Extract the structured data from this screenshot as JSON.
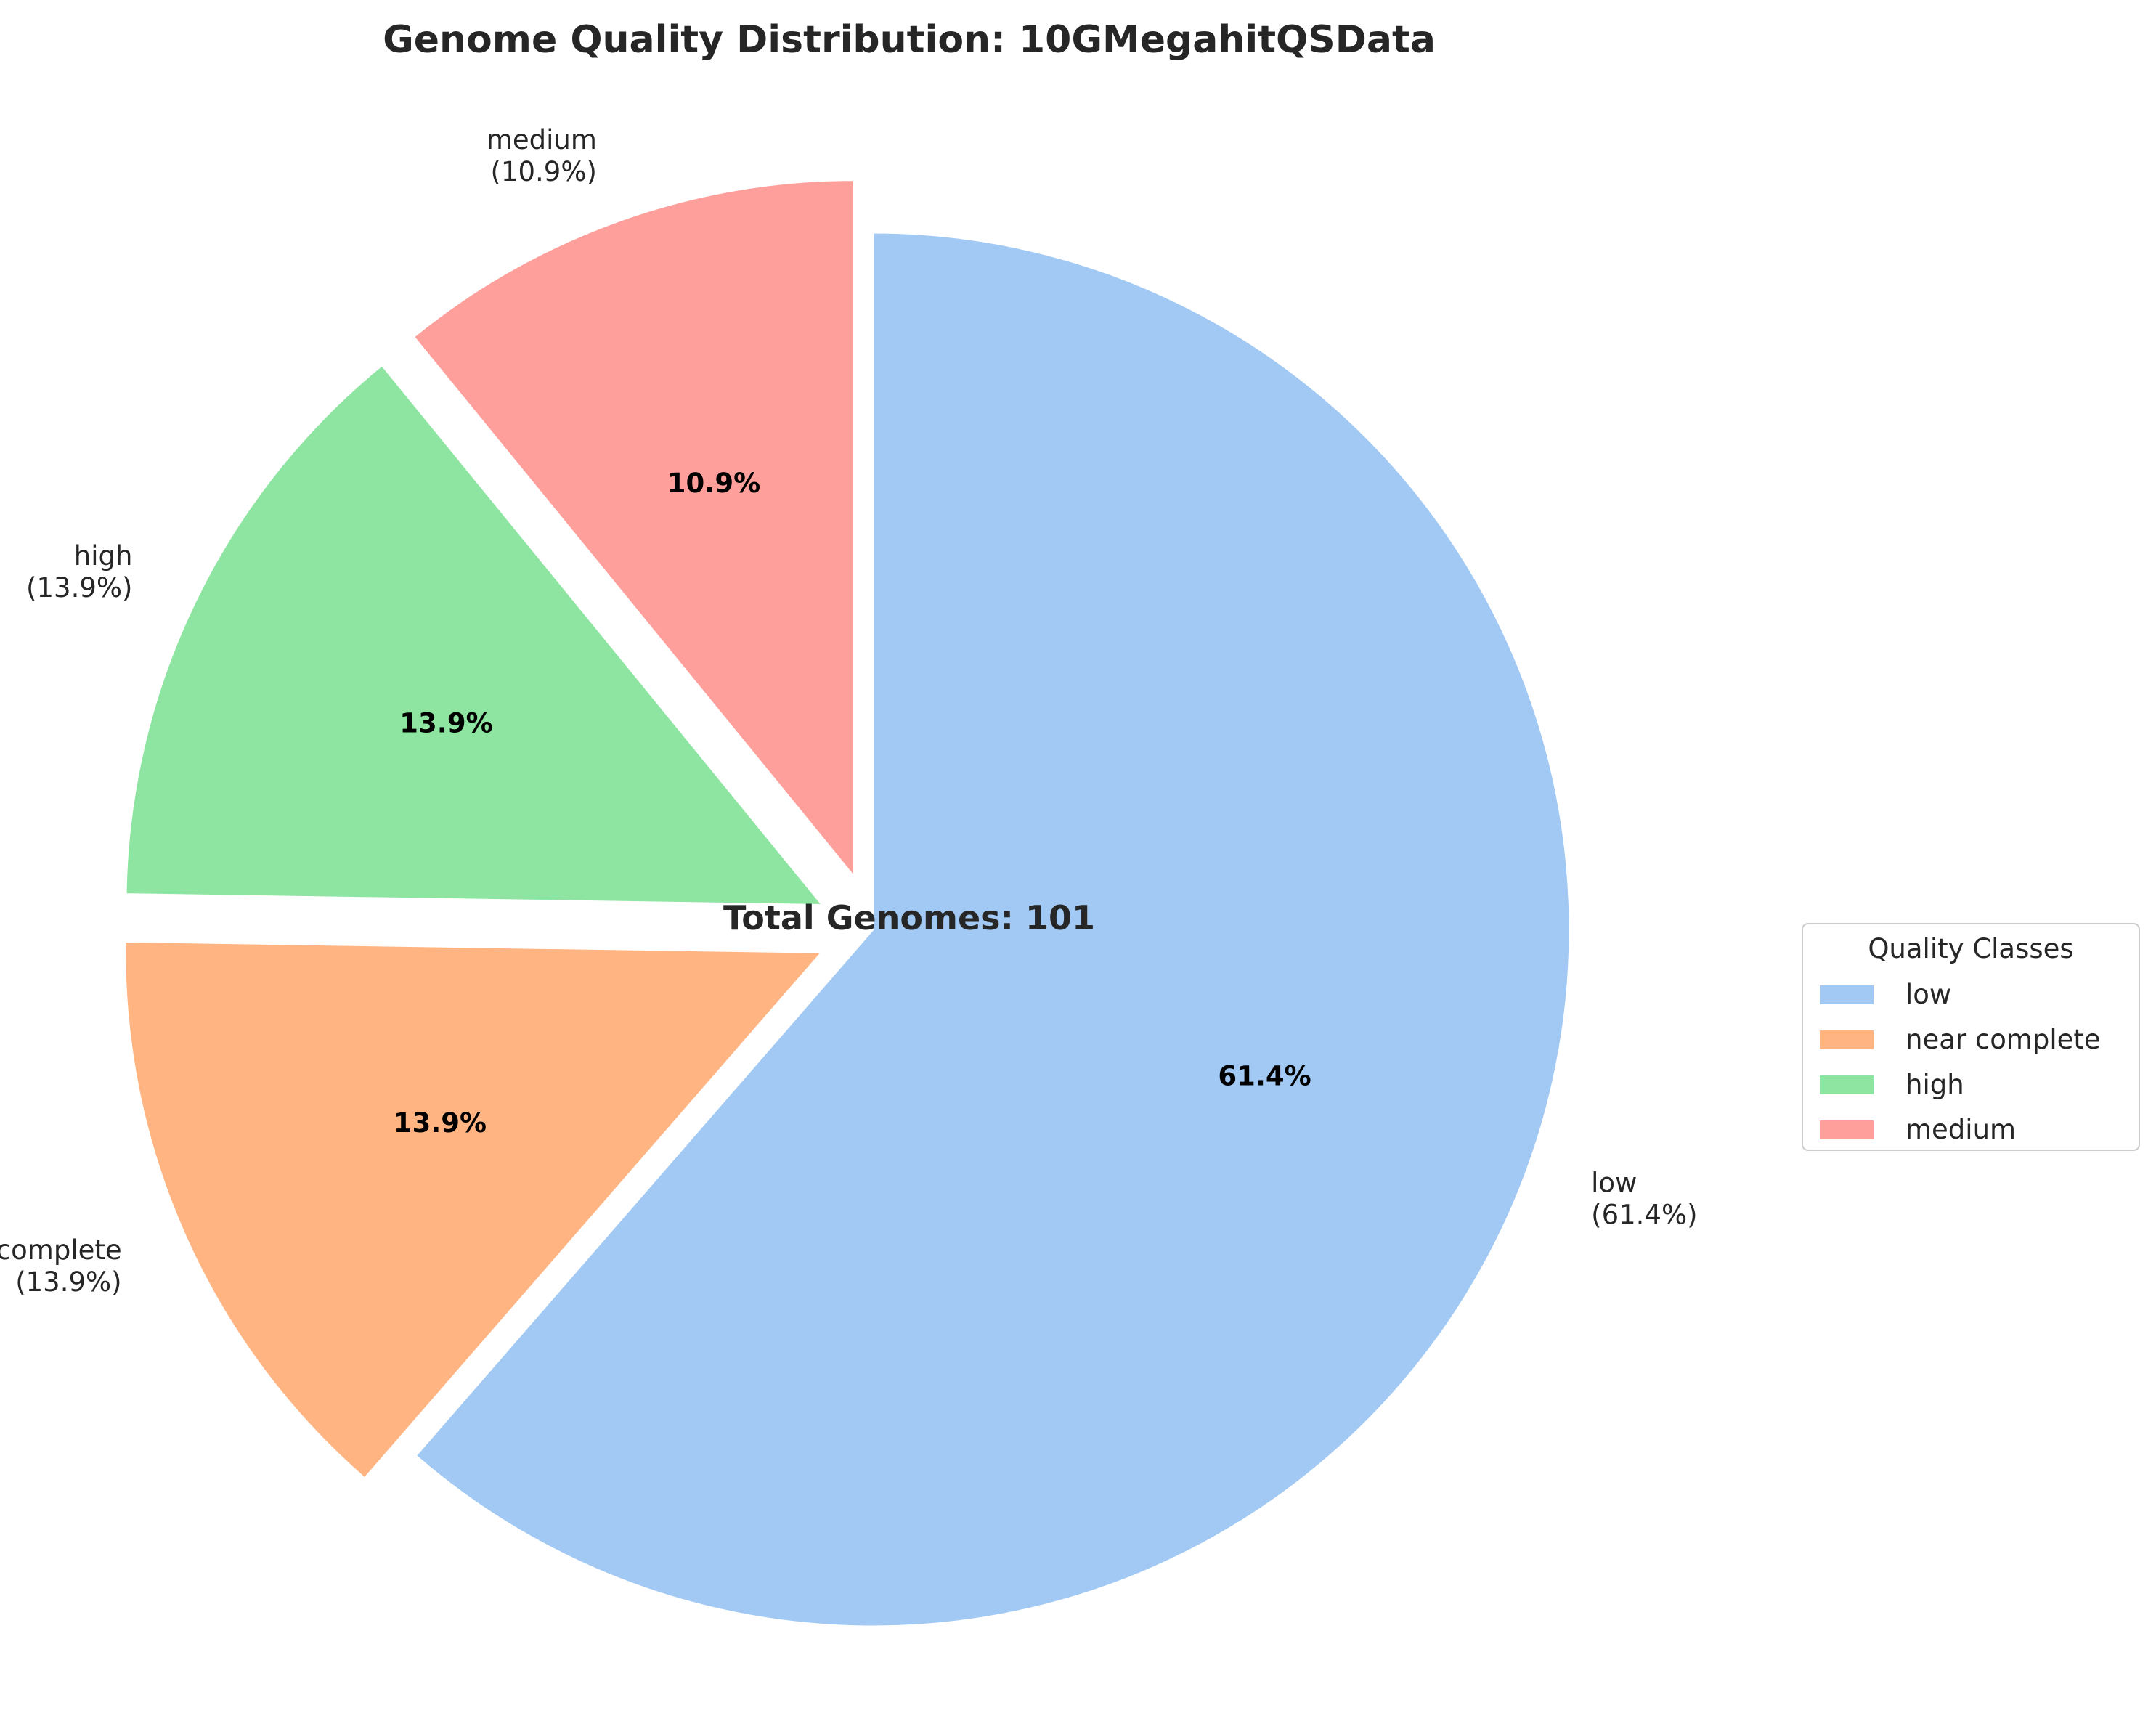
{
  "chart_data": {
    "type": "pie",
    "title": "Genome Quality Distribution: 10GMegahitQSData",
    "center_text": "Total Genomes: 101",
    "total": 101,
    "legend_title": "Quality Classes",
    "legend_position": "center-right",
    "start_angle_deg": 90,
    "direction": "clockwise",
    "slices": [
      {
        "label": "low",
        "value": 62,
        "percent": 61.4,
        "percent_text": "61.4%",
        "outer_text": "(61.4%)",
        "color": "#a1c9f4",
        "exploded": false
      },
      {
        "label": "near complete",
        "value": 14,
        "percent": 13.9,
        "percent_text": "13.9%",
        "outer_text": "(13.9%)",
        "color": "#ffb482",
        "exploded": true
      },
      {
        "label": "high",
        "value": 14,
        "percent": 13.9,
        "percent_text": "13.9%",
        "outer_text": "(13.9%)",
        "color": "#8de5a1",
        "exploded": true
      },
      {
        "label": "medium",
        "value": 11,
        "percent": 10.9,
        "percent_text": "10.9%",
        "outer_text": "(10.9%)",
        "color": "#ff9f9b",
        "exploded": true
      }
    ]
  }
}
